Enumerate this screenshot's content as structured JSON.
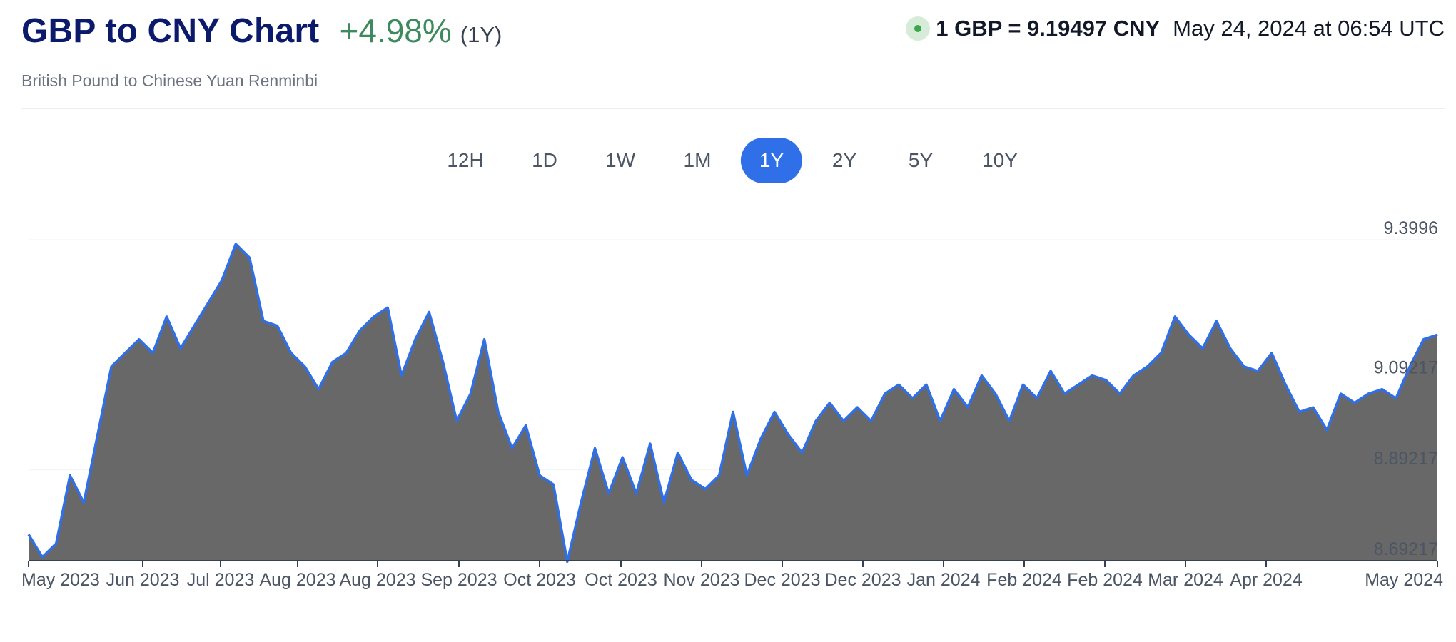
{
  "header": {
    "title": "GBP to CNY Chart",
    "change": "+4.98%",
    "period": "(1Y)",
    "subtitle": "British Pound to Chinese Yuan Renminbi",
    "rate": "1 GBP = 9.19497 CNY",
    "timestamp": "May 24, 2024 at 06:54 UTC"
  },
  "tabs": [
    {
      "label": "12H",
      "active": false
    },
    {
      "label": "1D",
      "active": false
    },
    {
      "label": "1W",
      "active": false
    },
    {
      "label": "1M",
      "active": false
    },
    {
      "label": "1Y",
      "active": true
    },
    {
      "label": "2Y",
      "active": false
    },
    {
      "label": "5Y",
      "active": false
    },
    {
      "label": "10Y",
      "active": false
    }
  ],
  "colors": {
    "accent": "#2f6fe8",
    "line": "#2f6fe8",
    "area": "#686868",
    "positive": "#3d8a5e",
    "title": "#0b1a6b"
  },
  "chart_data": {
    "type": "area",
    "title": "GBP to CNY Chart",
    "xlabel": "",
    "ylabel": "",
    "grid": true,
    "ylim": [
      8.69217,
      9.3996
    ],
    "y_ticks": [
      "9.3996",
      "9.09217",
      "8.89217",
      "8.69217"
    ],
    "x_tick_labels": [
      "May 2023",
      "Jun 2023",
      "Jul 2023",
      "Aug 2023",
      "Aug 2023",
      "Sep 2023",
      "Oct 2023",
      "Oct 2023",
      "Nov 2023",
      "Dec 2023",
      "Dec 2023",
      "Jan 2024",
      "Feb 2024",
      "Feb 2024",
      "Mar 2024",
      "Apr 2024",
      "May 2024"
    ],
    "series": [
      {
        "values": [
          8.75,
          8.7,
          8.73,
          8.88,
          8.82,
          8.97,
          9.12,
          9.15,
          9.18,
          9.15,
          9.23,
          9.16,
          9.21,
          9.26,
          9.31,
          9.39,
          9.36,
          9.22,
          9.21,
          9.15,
          9.12,
          9.07,
          9.13,
          9.15,
          9.2,
          9.23,
          9.25,
          9.1,
          9.18,
          9.24,
          9.13,
          9.0,
          9.06,
          9.18,
          9.02,
          8.94,
          8.99,
          8.88,
          8.86,
          8.69,
          8.82,
          8.94,
          8.84,
          8.92,
          8.84,
          8.95,
          8.82,
          8.93,
          8.87,
          8.85,
          8.88,
          9.02,
          8.88,
          8.96,
          9.02,
          8.97,
          8.93,
          9.0,
          9.04,
          9.0,
          9.03,
          9.0,
          9.06,
          9.08,
          9.05,
          9.08,
          9.0,
          9.07,
          9.03,
          9.1,
          9.06,
          9.0,
          9.08,
          9.05,
          9.11,
          9.06,
          9.08,
          9.1,
          9.09,
          9.06,
          9.1,
          9.12,
          9.15,
          9.23,
          9.19,
          9.16,
          9.22,
          9.16,
          9.12,
          9.11,
          9.15,
          9.08,
          9.02,
          9.03,
          8.98,
          9.06,
          9.04,
          9.06,
          9.07,
          9.05,
          9.12,
          9.18,
          9.19
        ]
      }
    ]
  }
}
